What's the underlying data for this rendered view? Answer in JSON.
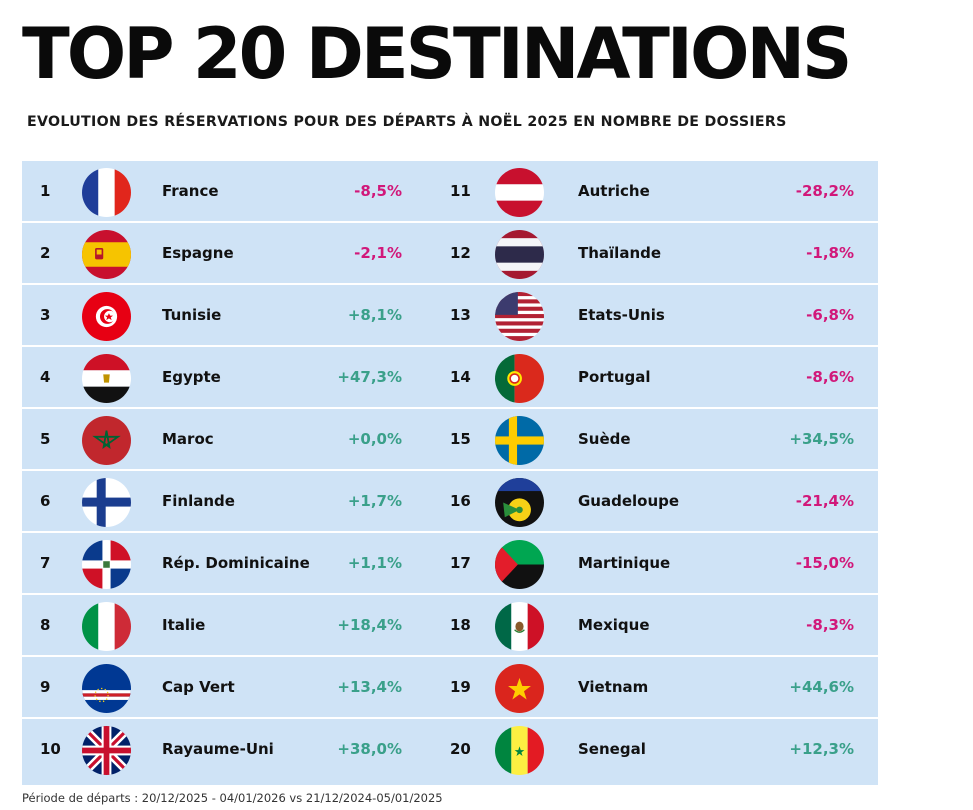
{
  "title": "TOP 20 DESTINATIONS",
  "subtitle": "EVOLUTION DES RÉSERVATIONS POUR DES DÉPARTS À NOËL 2025 EN NOMBRE DE DOSSIERS",
  "colors": {
    "negative": "#d1187a",
    "positive": "#3aa08a",
    "panel": "#cfe3f6"
  },
  "left": [
    {
      "rank": "1",
      "name": "France",
      "value": "-8,5%",
      "trend": "neg",
      "flag": "france-flag-icon"
    },
    {
      "rank": "2",
      "name": "Espagne",
      "value": "-2,1%",
      "trend": "neg",
      "flag": "spain-flag-icon"
    },
    {
      "rank": "3",
      "name": "Tunisie",
      "value": "+8,1%",
      "trend": "pos",
      "flag": "tunisia-flag-icon"
    },
    {
      "rank": "4",
      "name": "Egypte",
      "value": "+47,3%",
      "trend": "pos",
      "flag": "egypt-flag-icon"
    },
    {
      "rank": "5",
      "name": "Maroc",
      "value": "+0,0%",
      "trend": "pos",
      "flag": "morocco-flag-icon"
    },
    {
      "rank": "6",
      "name": "Finlande",
      "value": "+1,7%",
      "trend": "pos",
      "flag": "finland-flag-icon"
    },
    {
      "rank": "7",
      "name": "Rép. Dominicaine",
      "value": "+1,1%",
      "trend": "pos",
      "flag": "dominican-republic-flag-icon"
    },
    {
      "rank": "8",
      "name": "Italie",
      "value": "+18,4%",
      "trend": "pos",
      "flag": "italy-flag-icon"
    },
    {
      "rank": "9",
      "name": "Cap Vert",
      "value": "+13,4%",
      "trend": "pos",
      "flag": "cape-verde-flag-icon"
    },
    {
      "rank": "10",
      "name": "Rayaume-Uni",
      "value": "+38,0%",
      "trend": "pos",
      "flag": "uk-flag-icon"
    }
  ],
  "right": [
    {
      "rank": "11",
      "name": "Autriche",
      "value": "-28,2%",
      "trend": "neg",
      "flag": "austria-flag-icon"
    },
    {
      "rank": "12",
      "name": "Thaïlande",
      "value": "-1,8%",
      "trend": "neg",
      "flag": "thailand-flag-icon"
    },
    {
      "rank": "13",
      "name": "Etats-Unis",
      "value": "-6,8%",
      "trend": "neg",
      "flag": "usa-flag-icon"
    },
    {
      "rank": "14",
      "name": "Portugal",
      "value": "-8,6%",
      "trend": "neg",
      "flag": "portugal-flag-icon"
    },
    {
      "rank": "15",
      "name": "Suède",
      "value": "+34,5%",
      "trend": "pos",
      "flag": "sweden-flag-icon"
    },
    {
      "rank": "16",
      "name": "Guadeloupe",
      "value": "-21,4%",
      "trend": "neg",
      "flag": "guadeloupe-flag-icon"
    },
    {
      "rank": "17",
      "name": "Martinique",
      "value": "-15,0%",
      "trend": "neg",
      "flag": "martinique-flag-icon"
    },
    {
      "rank": "18",
      "name": "Mexique",
      "value": "-8,3%",
      "trend": "neg",
      "flag": "mexico-flag-icon"
    },
    {
      "rank": "19",
      "name": "Vietnam",
      "value": "+44,6%",
      "trend": "pos",
      "flag": "vietnam-flag-icon"
    },
    {
      "rank": "20",
      "name": "Senegal",
      "value": "+12,3%",
      "trend": "pos",
      "flag": "senegal-flag-icon"
    }
  ],
  "footnote": "Période de départs : 20/12/2025 - 04/01/2026 vs 21/12/2024-05/01/2025"
}
